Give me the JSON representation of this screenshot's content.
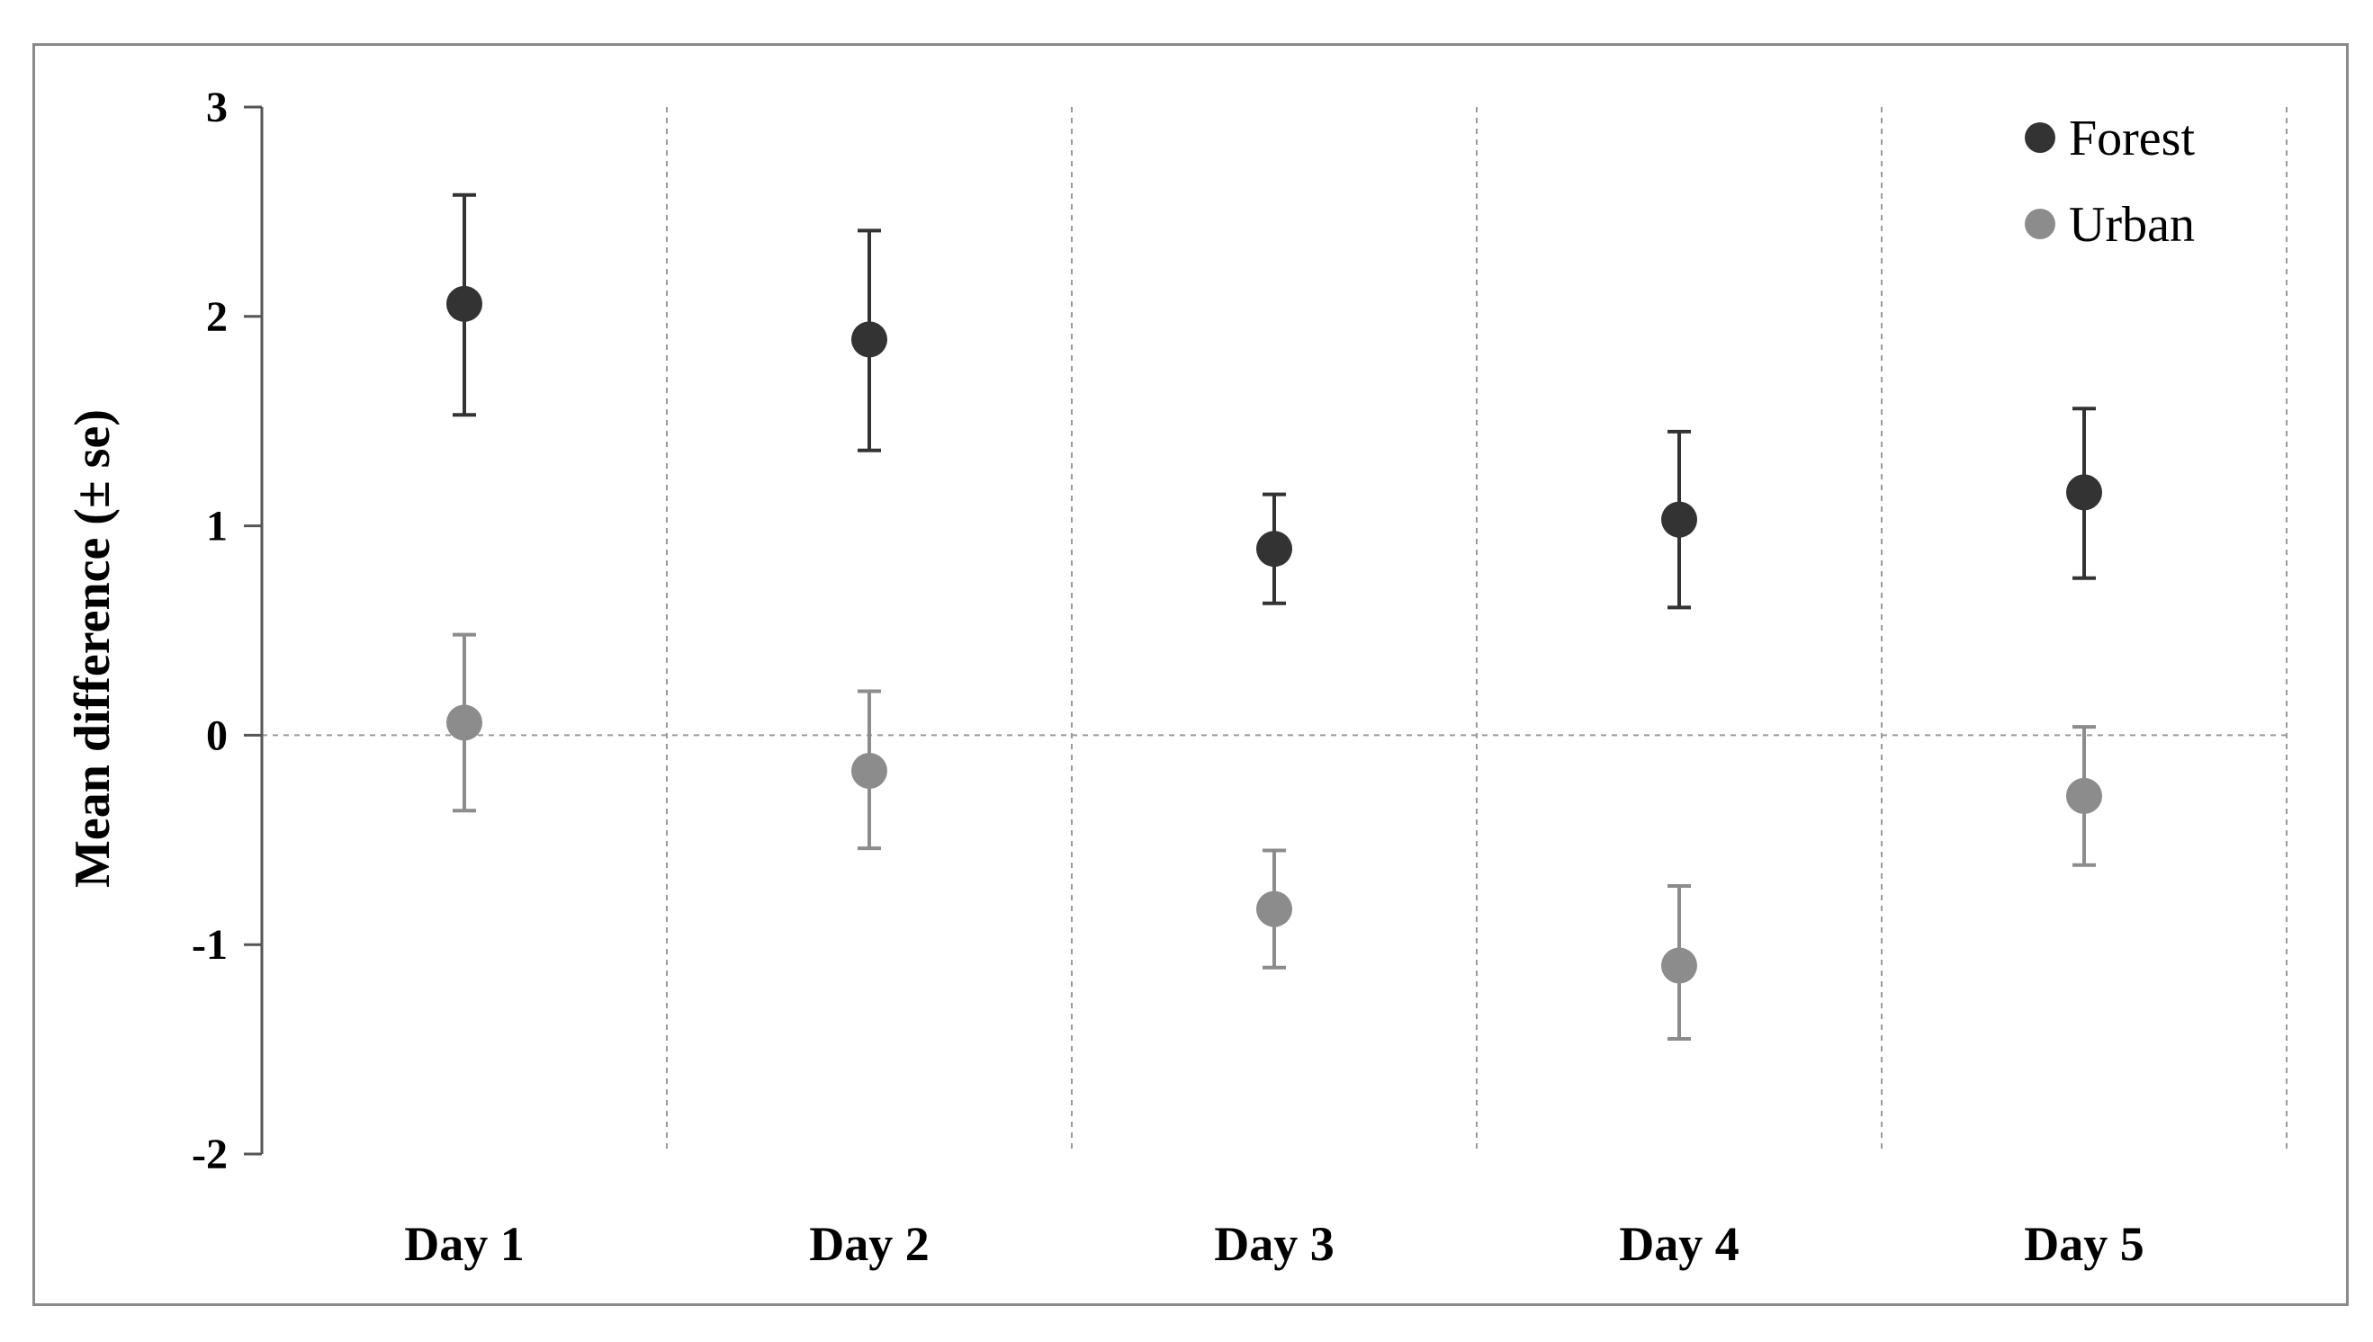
{
  "chart_data": {
    "type": "scatter",
    "title": "",
    "xlabel": "",
    "ylabel": "Mean difference (± se)",
    "categories": [
      "Day 1",
      "Day 2",
      "Day 3",
      "Day 4",
      "Day 5"
    ],
    "ylim": [
      -2,
      3
    ],
    "yticks": [
      "3",
      "2",
      "1",
      "0",
      "-1",
      "-2"
    ],
    "grid": "dashed vertical separators between days, dashed horizontal line at 0",
    "legend": {
      "placement": "top-right"
    },
    "series": [
      {
        "name": "Forest",
        "color": "#333333",
        "values": [
          2.06,
          1.89,
          0.89,
          1.03,
          1.16
        ],
        "err_low": [
          1.53,
          1.36,
          0.63,
          0.61,
          0.75
        ],
        "err_high": [
          2.58,
          2.41,
          1.15,
          1.45,
          1.56
        ]
      },
      {
        "name": "Urban",
        "color": "#8c8c8c",
        "values": [
          0.06,
          -0.17,
          -0.83,
          -1.1,
          -0.29
        ],
        "err_low": [
          -0.36,
          -0.54,
          -1.11,
          -1.45,
          -0.62
        ],
        "err_high": [
          0.48,
          0.21,
          -0.55,
          -0.72,
          0.04
        ]
      }
    ]
  }
}
